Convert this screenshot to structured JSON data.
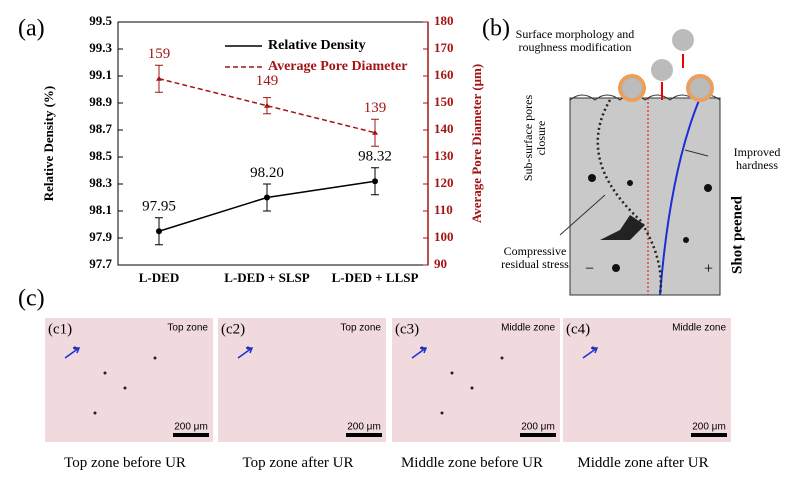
{
  "chart_data": {
    "type": "line",
    "panel_label": "(a)",
    "categories": [
      "L-DED",
      "L-DED + SLSP",
      "L-DED + LLSP"
    ],
    "ylabel": "Relative Density (%)",
    "y2label": "Average Pore Diameter (μm)",
    "ylim": [
      97.7,
      99.5
    ],
    "yticks": [
      97.7,
      97.9,
      98.1,
      98.3,
      98.5,
      98.7,
      98.9,
      99.1,
      99.3,
      99.5
    ],
    "y2lim": [
      90,
      180
    ],
    "y2ticks": [
      90,
      100,
      110,
      120,
      130,
      140,
      150,
      160,
      170,
      180
    ],
    "legend": "top",
    "series": [
      {
        "name": "Relative Density",
        "color": "#000000",
        "values": [
          97.95,
          98.2,
          98.32
        ],
        "errors": [
          0.1,
          0.1,
          0.1
        ],
        "value_labels": [
          "97.95",
          "98.20",
          "98.32"
        ]
      },
      {
        "name": "Average Pore Diameter",
        "color": "#a31515",
        "axis": "y2",
        "values": [
          159,
          149,
          139
        ],
        "errors": [
          5,
          3,
          5
        ],
        "value_labels": [
          "159",
          "149",
          "139"
        ]
      }
    ]
  },
  "panel_b": {
    "label": "(b)",
    "surface": "Surface morphology and roughness modification",
    "pores": "Sub-surface pores closure",
    "hardness": "Improved hardness",
    "stress": "Compressive residual stress",
    "side": "Shot peened",
    "minus": "−",
    "plus": "+"
  },
  "panel_c": {
    "label": "(c)",
    "images": [
      {
        "tag": "(c1)",
        "zone": "Top zone",
        "scale": "200 μm",
        "caption": "Top zone before UR"
      },
      {
        "tag": "(c2)",
        "zone": "Top zone",
        "scale": "200 μm",
        "caption": "Top zone after UR"
      },
      {
        "tag": "(c3)",
        "zone": "Middle zone",
        "scale": "200 μm",
        "caption": "Middle zone before UR"
      },
      {
        "tag": "(c4)",
        "zone": "Middle zone",
        "scale": "200 μm",
        "caption": "Middle zone after UR"
      }
    ]
  }
}
